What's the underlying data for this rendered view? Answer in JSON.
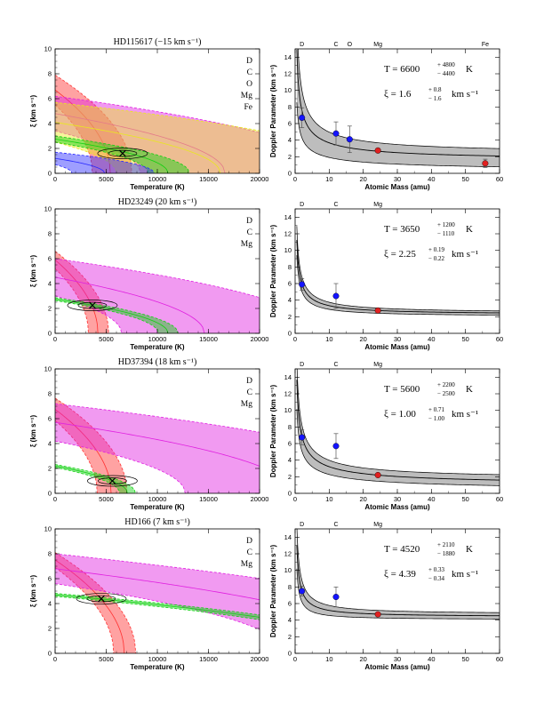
{
  "colors": {
    "D": "#ff3030",
    "C": "#e020e0",
    "O": "#e8e820",
    "Mg": "#10d010",
    "Fe": "#2828ff",
    "line": "#000000"
  },
  "left_axes": {
    "xlabel": "Temperature (K)",
    "ylabel": "ξ (km s⁻¹)",
    "xlim": [
      0,
      20000
    ],
    "ylim": [
      0,
      10
    ],
    "xticks": [
      "0",
      "5000",
      "10000",
      "15000",
      "20000"
    ],
    "yticks": [
      "0",
      "2",
      "4",
      "6",
      "8",
      "10"
    ]
  },
  "right_axes": {
    "xlabel": "Atomic Mass (amu)",
    "ylabel": "Doppler Parameter (km s⁻¹)",
    "xlim": [
      0,
      60
    ],
    "ylim": [
      0,
      15
    ],
    "xticks": [
      "0",
      "10",
      "20",
      "30",
      "40",
      "50",
      "60"
    ],
    "yticks": [
      "0",
      "2",
      "4",
      "6",
      "8",
      "10",
      "12",
      "14"
    ]
  },
  "chart_data": [
    {
      "type": "contour",
      "title": "HD115617 (−15 km s⁻¹)",
      "legend": [
        "D",
        "C",
        "O",
        "Mg",
        "Fe"
      ],
      "best_fit": {
        "T": 6600,
        "xi": 1.6
      },
      "bands": [
        {
          "ion": "D",
          "mass": 2,
          "b": 6.7,
          "db": 1.2
        },
        {
          "ion": "C",
          "mass": 12,
          "b": 4.8,
          "db": 1.4
        },
        {
          "ion": "O",
          "mass": 16,
          "b": 4.1,
          "db": 1.6
        },
        {
          "ion": "Mg",
          "mass": 24.3,
          "b": 2.75,
          "db": 0.25
        },
        {
          "ion": "Fe",
          "mass": 55.8,
          "b": 1.2,
          "db": 0.5
        }
      ]
    },
    {
      "type": "doppler_fit",
      "top_labels": [
        "D",
        "C",
        "O",
        "Mg",
        "Fe"
      ],
      "T": "T = 6600",
      "T_up": "+ 4800",
      "T_dn": "− 4400",
      "T_unit": "K",
      "xi": "ξ = 1.6",
      "xi_up": "+ 0.8",
      "xi_dn": "− 1.6",
      "xi_unit": "km s⁻¹",
      "points": [
        {
          "ion": "D",
          "x": 2,
          "y": 6.7,
          "err": 1.2,
          "color": "#1414ff"
        },
        {
          "ion": "C",
          "x": 12,
          "y": 4.8,
          "err": 1.4,
          "color": "#1414ff"
        },
        {
          "ion": "O",
          "x": 16,
          "y": 4.1,
          "err": 1.6,
          "color": "#1414ff"
        },
        {
          "ion": "Mg",
          "x": 24.3,
          "y": 2.75,
          "err": 0.25,
          "color": "#e02020"
        },
        {
          "ion": "Fe",
          "x": 55.8,
          "y": 1.2,
          "err": 0.5,
          "color": "#e02020"
        }
      ],
      "fit": {
        "T": 6600,
        "xi": 1.6,
        "Tlo": 2200,
        "xilo": 0.0,
        "Thi": 11400,
        "xihi": 2.4
      }
    },
    {
      "type": "contour",
      "title": "HD23249 (20 km s⁻¹)",
      "legend": [
        "D",
        "C",
        "Mg"
      ],
      "best_fit": {
        "T": 3650,
        "xi": 2.25
      },
      "bands": [
        {
          "ion": "D",
          "mass": 2,
          "b": 5.9,
          "db": 0.7
        },
        {
          "ion": "C",
          "mass": 12,
          "b": 4.5,
          "db": 1.5
        },
        {
          "ion": "Mg",
          "mass": 24.3,
          "b": 2.75,
          "db": 0.12
        }
      ]
    },
    {
      "type": "doppler_fit",
      "top_labels": [
        "D",
        "C",
        "Mg"
      ],
      "T": "T = 3650",
      "T_up": "+ 1200",
      "T_dn": "− 1110",
      "T_unit": "K",
      "xi": "ξ = 2.25",
      "xi_up": "+ 0.19",
      "xi_dn": "− 0.22",
      "xi_unit": "km s⁻¹",
      "points": [
        {
          "ion": "D",
          "x": 2,
          "y": 5.9,
          "err": 0.7,
          "color": "#1414ff"
        },
        {
          "ion": "C",
          "x": 12,
          "y": 4.5,
          "err": 1.5,
          "color": "#1414ff"
        },
        {
          "ion": "Mg",
          "x": 24.3,
          "y": 2.75,
          "err": 0.12,
          "color": "#e02020"
        }
      ],
      "fit": {
        "T": 3650,
        "xi": 2.25,
        "Tlo": 2540,
        "xilo": 2.03,
        "Thi": 4850,
        "xihi": 2.44
      }
    },
    {
      "type": "contour",
      "title": "HD37394 (18 km s⁻¹)",
      "legend": [
        "D",
        "C",
        "Mg"
      ],
      "best_fit": {
        "T": 5600,
        "xi": 1.0
      },
      "bands": [
        {
          "ion": "D",
          "mass": 2,
          "b": 6.75,
          "db": 0.9
        },
        {
          "ion": "C",
          "mass": 12,
          "b": 5.7,
          "db": 1.5
        },
        {
          "ion": "Mg",
          "mass": 24.3,
          "b": 2.2,
          "db": 0.12
        }
      ]
    },
    {
      "type": "doppler_fit",
      "top_labels": [
        "D",
        "C",
        "Mg"
      ],
      "T": "T = 5600",
      "T_up": "+ 2200",
      "T_dn": "− 2500",
      "T_unit": "K",
      "xi": "ξ = 1.00",
      "xi_up": "+ 0.71",
      "xi_dn": "− 1.00",
      "xi_unit": "km s⁻¹",
      "points": [
        {
          "ion": "D",
          "x": 2,
          "y": 6.75,
          "err": 0.9,
          "color": "#1414ff"
        },
        {
          "ion": "C",
          "x": 12,
          "y": 5.7,
          "err": 1.5,
          "color": "#1414ff"
        },
        {
          "ion": "Mg",
          "x": 24.3,
          "y": 2.2,
          "err": 0.12,
          "color": "#e02020"
        }
      ],
      "fit": {
        "T": 5600,
        "xi": 1.0,
        "Tlo": 3100,
        "xilo": 0.0,
        "Thi": 7800,
        "xihi": 1.71
      }
    },
    {
      "type": "contour",
      "title": "HD166 (7 km s⁻¹)",
      "legend": [
        "D",
        "C",
        "Mg"
      ],
      "best_fit": {
        "T": 4520,
        "xi": 4.39
      },
      "bands": [
        {
          "ion": "D",
          "mass": 2,
          "b": 7.5,
          "db": 0.6
        },
        {
          "ion": "C",
          "mass": 12,
          "b": 6.8,
          "db": 1.2
        },
        {
          "ion": "Mg",
          "mass": 24.3,
          "b": 4.7,
          "db": 0.12
        }
      ]
    },
    {
      "type": "doppler_fit",
      "top_labels": [
        "D",
        "C",
        "Mg"
      ],
      "T": "T = 4520",
      "T_up": "+ 2110",
      "T_dn": "− 1880",
      "T_unit": "K",
      "xi": "ξ = 4.39",
      "xi_up": "+ 0.33",
      "xi_dn": "− 0.34",
      "xi_unit": "km s⁻¹",
      "points": [
        {
          "ion": "D",
          "x": 2,
          "y": 7.5,
          "err": 0.6,
          "color": "#1414ff"
        },
        {
          "ion": "C",
          "x": 12,
          "y": 6.8,
          "err": 1.2,
          "color": "#1414ff"
        },
        {
          "ion": "Mg",
          "x": 24.3,
          "y": 4.7,
          "err": 0.12,
          "color": "#e02020"
        }
      ],
      "fit": {
        "T": 4520,
        "xi": 4.39,
        "Tlo": 2640,
        "xilo": 4.05,
        "Thi": 6630,
        "xihi": 4.72
      }
    }
  ]
}
